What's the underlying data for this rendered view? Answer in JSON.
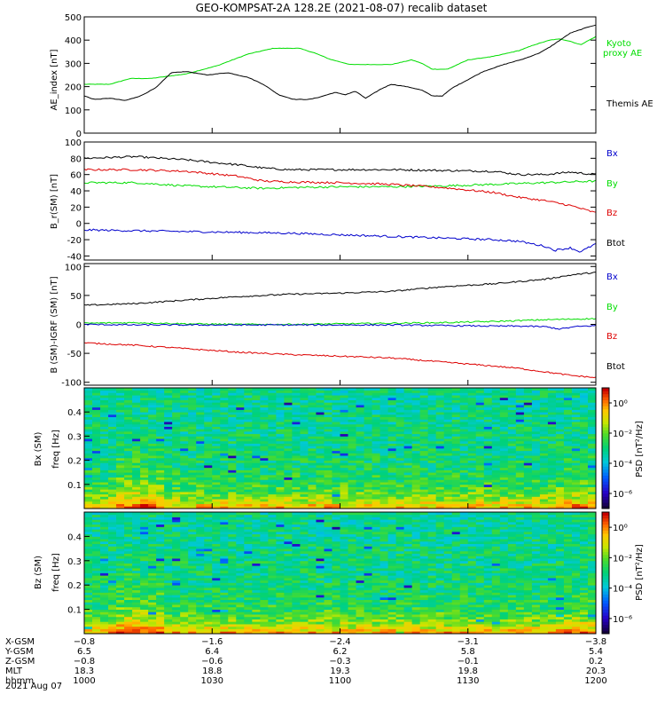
{
  "title": "GEO-KOMPSAT-2A 128.2E (2021-08-07) recalib dataset",
  "colors": {
    "black": "#000000",
    "green": "#00dd00",
    "red": "#dd0000",
    "blue": "#0000cc"
  },
  "chart_data": [
    {
      "type": "line",
      "ylabel": "AE_index [nT]",
      "ylim": [
        0,
        500
      ],
      "yticks": [
        0,
        100,
        200,
        300,
        400,
        500
      ],
      "x_label_times": [
        "1000",
        "1030",
        "1100",
        "1130",
        "1200"
      ],
      "series": [
        {
          "name": "Kyoto proxy AE",
          "color": "#00dd00",
          "x": [
            0,
            0.05,
            0.09,
            0.13,
            0.2,
            0.26,
            0.32,
            0.37,
            0.42,
            0.45,
            0.48,
            0.52,
            0.56,
            0.6,
            0.62,
            0.64,
            0.66,
            0.68,
            0.71,
            0.75,
            0.8,
            0.85,
            0.88,
            0.91,
            0.93,
            0.95,
            0.97,
            1.0
          ],
          "values": [
            210,
            210,
            235,
            235,
            255,
            290,
            340,
            365,
            365,
            345,
            318,
            295,
            295,
            295,
            305,
            315,
            300,
            275,
            275,
            315,
            330,
            355,
            380,
            400,
            405,
            395,
            380,
            415
          ]
        },
        {
          "name": "Themis AE",
          "color": "#000000",
          "x": [
            0,
            0.02,
            0.05,
            0.08,
            0.11,
            0.14,
            0.17,
            0.2,
            0.24,
            0.28,
            0.32,
            0.35,
            0.38,
            0.41,
            0.44,
            0.46,
            0.49,
            0.51,
            0.53,
            0.55,
            0.58,
            0.6,
            0.63,
            0.66,
            0.68,
            0.7,
            0.72,
            0.75,
            0.78,
            0.82,
            0.86,
            0.89,
            0.91,
            0.93,
            0.95,
            0.97,
            0.99,
            1.0
          ],
          "values": [
            160,
            145,
            150,
            140,
            160,
            195,
            260,
            265,
            250,
            260,
            240,
            210,
            165,
            145,
            145,
            155,
            175,
            165,
            180,
            150,
            190,
            210,
            200,
            185,
            160,
            160,
            195,
            230,
            265,
            295,
            320,
            345,
            370,
            400,
            430,
            445,
            460,
            465
          ]
        }
      ],
      "legend": [
        "Kyoto proxy AE",
        "Themis AE"
      ],
      "legend_placement": "right"
    },
    {
      "type": "line",
      "ylabel": "B_r(SM) [nT]",
      "ylim": [
        -45,
        100
      ],
      "yticks": [
        -40,
        -20,
        0,
        20,
        40,
        60,
        80,
        100
      ],
      "series": [
        {
          "name": "Bx",
          "color": "#000000",
          "x": [
            0,
            0.1,
            0.2,
            0.3,
            0.35,
            0.4,
            0.5,
            0.6,
            0.7,
            0.8,
            0.85,
            0.9,
            0.95,
            1.0
          ],
          "values": [
            80,
            82,
            78,
            72,
            68,
            66,
            66,
            66,
            65,
            64,
            60,
            60,
            63,
            60
          ]
        },
        {
          "name": "By",
          "color": "#00dd00",
          "x": [
            0,
            0.1,
            0.2,
            0.3,
            0.35,
            0.4,
            0.5,
            0.6,
            0.7,
            0.8,
            0.9,
            1.0
          ],
          "values": [
            50,
            50,
            46,
            44,
            43,
            44,
            45,
            45,
            46,
            48,
            50,
            52
          ]
        },
        {
          "name": "Bz",
          "color": "#dd0000",
          "x": [
            0,
            0.1,
            0.2,
            0.3,
            0.35,
            0.4,
            0.5,
            0.6,
            0.7,
            0.8,
            0.85,
            0.9,
            0.95,
            1.0
          ],
          "values": [
            66,
            66,
            64,
            58,
            52,
            51,
            50,
            48,
            44,
            38,
            32,
            28,
            22,
            13
          ]
        },
        {
          "name": "Btot",
          "color": "#0000cc",
          "x": [
            0,
            0.1,
            0.2,
            0.3,
            0.4,
            0.5,
            0.6,
            0.7,
            0.8,
            0.85,
            0.9,
            0.92,
            0.95,
            0.97,
            1.0
          ],
          "values": [
            -8,
            -9,
            -10,
            -11,
            -12,
            -14,
            -16,
            -18,
            -20,
            -22,
            -28,
            -33,
            -30,
            -35,
            -25
          ]
        }
      ],
      "legend": [
        "Bx",
        "By",
        "Bz",
        "Btot"
      ],
      "legend_placement": "right"
    },
    {
      "type": "line",
      "ylabel": "B (SM)-IGRF (SM) [nT]",
      "ylim": [
        -105,
        105
      ],
      "yticks": [
        -100,
        -50,
        0,
        50,
        100
      ],
      "series": [
        {
          "name": "Bx",
          "color": "#000000",
          "x": [
            0,
            0.1,
            0.2,
            0.3,
            0.4,
            0.5,
            0.6,
            0.7,
            0.8,
            0.9,
            0.95,
            1.0
          ],
          "values": [
            33,
            36,
            42,
            48,
            52,
            54,
            57,
            65,
            70,
            78,
            85,
            90
          ]
        },
        {
          "name": "By",
          "color": "#00dd00",
          "x": [
            0,
            0.1,
            0.2,
            0.3,
            0.4,
            0.5,
            0.6,
            0.7,
            0.8,
            0.9,
            1.0
          ],
          "values": [
            2,
            3,
            1,
            0,
            0,
            1,
            2,
            3,
            5,
            8,
            10
          ]
        },
        {
          "name": "Bz",
          "color": "#dd0000",
          "x": [
            0,
            0.1,
            0.2,
            0.3,
            0.4,
            0.5,
            0.6,
            0.7,
            0.8,
            0.85,
            0.9,
            0.95,
            1.0
          ],
          "values": [
            -32,
            -36,
            -42,
            -48,
            -52,
            -55,
            -58,
            -65,
            -72,
            -76,
            -82,
            -88,
            -92
          ]
        },
        {
          "name": "Btot",
          "color": "#0000cc",
          "x": [
            0,
            0.1,
            0.2,
            0.3,
            0.4,
            0.5,
            0.6,
            0.7,
            0.8,
            0.85,
            0.9,
            0.93,
            0.96,
            1.0
          ],
          "values": [
            0,
            -1,
            -1,
            -1,
            -1,
            -1,
            -1,
            -2,
            -3,
            -3,
            -4,
            -8,
            -4,
            -2
          ]
        }
      ],
      "legend": [
        "Bx",
        "By",
        "Bz",
        "Btot"
      ],
      "legend_placement": "right"
    },
    {
      "type": "heatmap",
      "ylabel_component": "Bx (SM)",
      "ylabel_freq": "freq [Hz]",
      "ylim": [
        0,
        0.5
      ],
      "yticks": [
        "0.1",
        "0.2",
        "0.3",
        "0.4"
      ],
      "colorbar_label": "PSD [nT²/Hz]",
      "colorbar_ticks": [
        "10⁰",
        "10⁻²",
        "10⁻⁴",
        "10⁻⁶"
      ],
      "colorbar_range_log10": [
        -7,
        1
      ]
    },
    {
      "type": "heatmap",
      "ylabel_component": "Bz (SM)",
      "ylabel_freq": "freq [Hz]",
      "ylim": [
        0,
        0.5
      ],
      "yticks": [
        "0.1",
        "0.2",
        "0.3",
        "0.4"
      ],
      "colorbar_label": "PSD [nT²/Hz]",
      "colorbar_ticks": [
        "10⁰",
        "10⁻²",
        "10⁻⁴",
        "10⁻⁶"
      ],
      "colorbar_range_log10": [
        -7,
        1
      ]
    }
  ],
  "ephemeris": {
    "row_labels": [
      "X-GSM",
      "Y-GSM",
      "Z-GSM",
      "MLT",
      "hhmm"
    ],
    "columns": [
      [
        "−0.8",
        "6.5",
        "−0.8",
        "18.3",
        "1000"
      ],
      [
        "−1.6",
        "6.4",
        "−0.6",
        "18.8",
        "1030"
      ],
      [
        "−2.4",
        "6.2",
        "−0.3",
        "19.3",
        "1100"
      ],
      [
        "−3.1",
        "5.8",
        "−0.1",
        "19.8",
        "1130"
      ],
      [
        "−3.8",
        "5.4",
        "0.2",
        "20.3",
        "1200"
      ]
    ],
    "date": "2021 Aug 07"
  },
  "legend_labels": {
    "ae": [
      "Kyoto",
      "proxy AE",
      "Themis AE"
    ],
    "b": [
      "Bx",
      "By",
      "Bz",
      "Btot"
    ]
  }
}
